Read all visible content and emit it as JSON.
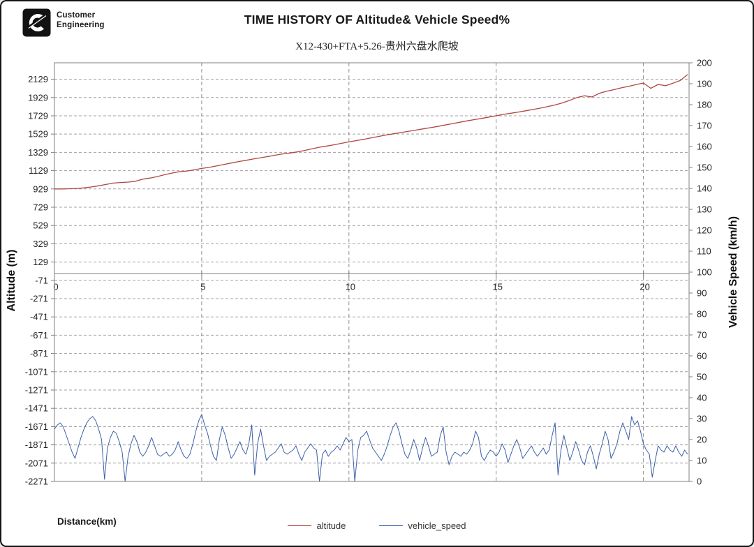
{
  "header": {
    "logo": {
      "icon": "cummins-logo",
      "line1": "Customer",
      "line2": "Engineering"
    }
  },
  "chart_data": {
    "type": "line",
    "title": "TIME HISTORY OF Altitude& Vehicle Speed%",
    "subtitle": "X12-430+FTA+5.26-贵州六盘水爬坡",
    "xlabel": "Distance(km)",
    "x_ticks": [
      0,
      5,
      10,
      15,
      20
    ],
    "x_range": [
      0,
      21.55
    ],
    "grid": "dashed-both",
    "legend_position": "bottom",
    "left_axis": {
      "label": "Altitude (m)",
      "min": -2271,
      "max": 2309,
      "tick_step": 200,
      "ticks": [
        2129,
        1929,
        1729,
        1529,
        1329,
        1129,
        929,
        729,
        529,
        329,
        129,
        -71,
        -271,
        -471,
        -671,
        -871,
        -1071,
        -1271,
        -1471,
        -1671,
        -1871,
        -2071,
        -2271
      ]
    },
    "right_axis": {
      "label": "Vehicle Speed (km/h)",
      "min": 0,
      "max": 200,
      "tick_step": 10,
      "ticks": [
        200,
        190,
        180,
        170,
        160,
        150,
        140,
        130,
        120,
        110,
        100,
        90,
        80,
        70,
        60,
        50,
        40,
        30,
        20,
        10,
        0
      ]
    },
    "legend": [
      "altitude",
      "vehicle_speed"
    ],
    "colors": {
      "altitude": "#AE4641",
      "vehicle_speed": "#3C5FA8",
      "grid": "#a0a0a0",
      "axis": "#7f7f7f",
      "text": "#262626"
    },
    "series": [
      {
        "name": "altitude",
        "axis": "left",
        "x_start": 0,
        "x_step": 0.25,
        "values": [
          929,
          929,
          931,
          934,
          940,
          950,
          963,
          978,
          993,
          999,
          1004,
          1013,
          1036,
          1048,
          1065,
          1085,
          1103,
          1118,
          1125,
          1138,
          1153,
          1165,
          1180,
          1196,
          1212,
          1228,
          1242,
          1256,
          1270,
          1284,
          1298,
          1312,
          1322,
          1334,
          1350,
          1368,
          1385,
          1398,
          1412,
          1428,
          1443,
          1458,
          1472,
          1488,
          1503,
          1518,
          1532,
          1545,
          1558,
          1572,
          1585,
          1598,
          1612,
          1627,
          1642,
          1658,
          1673,
          1687,
          1700,
          1715,
          1730,
          1745,
          1757,
          1770,
          1784,
          1798,
          1813,
          1830,
          1848,
          1870,
          1898,
          1930,
          1948,
          1935,
          1975,
          1998,
          2015,
          2035,
          2052,
          2070,
          2088,
          2030,
          2072,
          2058,
          2085,
          2115,
          2180
        ]
      },
      {
        "name": "vehicle_speed",
        "axis": "right",
        "x_start": 0,
        "x_step": 0.1,
        "values": [
          25,
          27,
          28,
          26,
          22,
          18,
          14,
          11,
          16,
          21,
          25,
          28,
          30,
          31,
          29,
          25,
          20,
          1,
          16,
          21,
          24,
          23,
          19,
          14,
          0,
          12,
          18,
          22,
          19,
          14,
          12,
          14,
          17,
          21,
          17,
          13,
          12,
          13,
          14,
          12,
          13,
          15,
          19,
          15,
          12,
          11,
          13,
          18,
          24,
          29,
          32,
          27,
          23,
          17,
          12,
          10,
          20,
          26,
          22,
          16,
          11,
          13,
          16,
          19,
          15,
          13,
          18,
          27,
          3,
          18,
          25,
          17,
          10,
          12,
          13,
          14,
          16,
          18,
          14,
          13,
          14,
          15,
          17,
          13,
          10,
          14,
          16,
          18,
          16,
          15,
          0,
          13,
          15,
          12,
          14,
          15,
          17,
          15,
          18,
          21,
          19,
          20,
          0,
          15,
          21,
          22,
          24,
          20,
          16,
          14,
          12,
          10,
          13,
          17,
          22,
          26,
          28,
          24,
          18,
          13,
          11,
          15,
          20,
          16,
          10,
          16,
          21,
          17,
          12,
          13,
          14,
          22,
          26,
          14,
          8,
          12,
          14,
          13,
          12,
          14,
          13,
          15,
          18,
          24,
          21,
          12,
          10,
          13,
          15,
          14,
          12,
          14,
          18,
          15,
          9,
          13,
          17,
          20,
          16,
          11,
          13,
          15,
          17,
          14,
          12,
          14,
          16,
          13,
          15,
          22,
          28,
          3,
          15,
          22,
          16,
          10,
          14,
          19,
          15,
          10,
          8,
          14,
          17,
          12,
          6,
          13,
          18,
          24,
          20,
          11,
          14,
          18,
          24,
          28,
          24,
          20,
          31,
          27,
          29,
          24,
          18,
          15,
          13,
          2,
          10,
          17,
          15,
          14,
          17,
          15,
          14,
          17,
          14,
          12,
          15,
          13
        ]
      }
    ]
  }
}
